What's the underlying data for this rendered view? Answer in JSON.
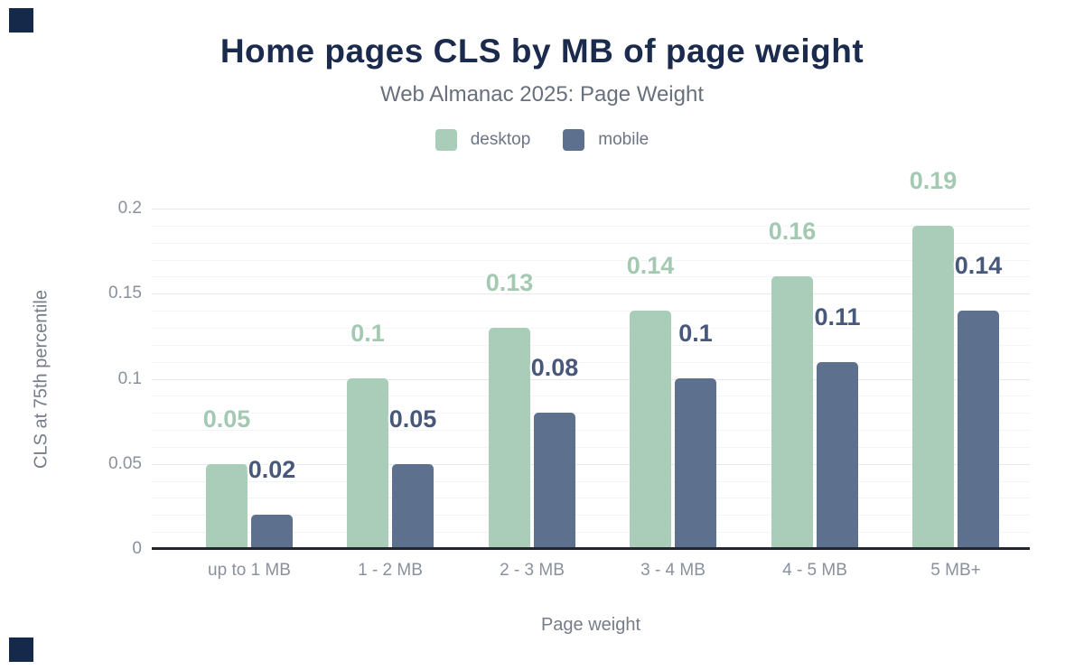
{
  "figure": {
    "title": "Home pages CLS by MB of page weight",
    "subtitle": "Web Almanac 2025: Page Weight"
  },
  "legend": [
    {
      "label": "desktop",
      "color": "#a9cdb9"
    },
    {
      "label": "mobile",
      "color": "#5d708e"
    }
  ],
  "chart_data": {
    "type": "bar",
    "title": "Home pages CLS by MB of page weight",
    "subtitle": "Web Almanac 2025: Page Weight",
    "categories": [
      "up to 1 MB",
      "1 - 2 MB",
      "2 - 3 MB",
      "3 - 4 MB",
      "4 - 5 MB",
      "5 MB+"
    ],
    "series": [
      {
        "name": "desktop",
        "values": [
          0.05,
          0.1,
          0.13,
          0.14,
          0.16,
          0.19
        ],
        "value_labels": [
          "0.05",
          "0.1",
          "0.13",
          "0.14",
          "0.16",
          "0.19"
        ],
        "bar_color": "#a9cdb9",
        "label_color": "#a3c9b3"
      },
      {
        "name": "mobile",
        "values": [
          0.02,
          0.05,
          0.08,
          0.1,
          0.11,
          0.14
        ],
        "value_labels": [
          "0.02",
          "0.05",
          "0.08",
          "0.1",
          "0.11",
          "0.14"
        ],
        "bar_color": "#5d708e",
        "label_color": "#47587b"
      }
    ],
    "xlabel": "Page weight",
    "ylabel": "CLS at 75th percentile",
    "ylim": [
      0,
      0.2
    ],
    "yticks": [
      0,
      0.05,
      0.1,
      0.15,
      0.2
    ],
    "ytick_labels": [
      "0",
      "0.05",
      "0.1",
      "0.15",
      "0.2"
    ],
    "minor_grid_step": 0.01,
    "grid": true,
    "legend_position": "top"
  },
  "colors": {
    "title": "#1b2b4d",
    "subtitle": "#68707e",
    "legend_label": "#6d7585",
    "tick_label": "#8a919c",
    "axis_title": "#767d89",
    "major_grid": "#e6e8ec",
    "minor_grid": "#f3f4f6",
    "axis_line": "#22262e",
    "corner_square": "#152a4a",
    "background": "#ffffff"
  }
}
